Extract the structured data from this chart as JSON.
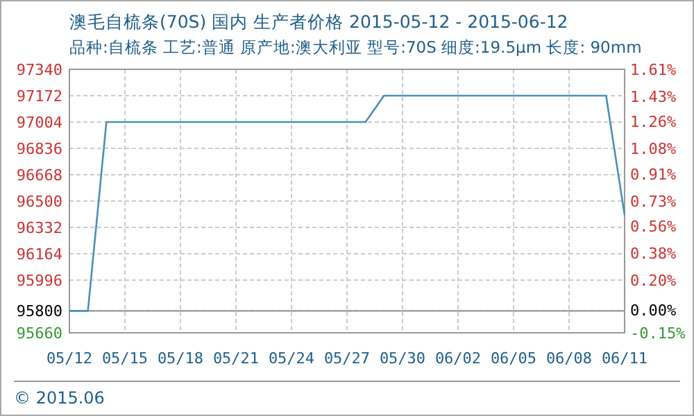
{
  "chart_data": {
    "type": "line",
    "title": "澳毛自梳条(70S) 国内 生产者价格 2015-05-12 - 2015-06-12",
    "subtitle": "品种:自梳条 工艺:普通 原产地:澳大利亚 型号:70S 细度:19.5μm 长度: 90mm",
    "x": [
      "2015-05-12",
      "2015-05-13",
      "2015-05-14",
      "2015-05-28",
      "2015-05-29",
      "2015-06-10",
      "2015-06-11"
    ],
    "series": [
      {
        "color": "#4a8fb8",
        "values": [
          95800,
          95800,
          97004,
          97004,
          97172,
          97172,
          96410
        ]
      }
    ],
    "xlim": [
      "2015-05-12",
      "2015-06-11"
    ],
    "xticks": [
      {
        "value": "2015-05-12",
        "label": "05/12"
      },
      {
        "value": "2015-05-15",
        "label": "05/15"
      },
      {
        "value": "2015-05-18",
        "label": "05/18"
      },
      {
        "value": "2015-05-21",
        "label": "05/21"
      },
      {
        "value": "2015-05-24",
        "label": "05/24"
      },
      {
        "value": "2015-05-27",
        "label": "05/27"
      },
      {
        "value": "2015-05-30",
        "label": "05/30"
      },
      {
        "value": "2015-06-02",
        "label": "06/02"
      },
      {
        "value": "2015-06-05",
        "label": "06/05"
      },
      {
        "value": "2015-06-08",
        "label": "06/08"
      },
      {
        "value": "2015-06-11",
        "label": "06/11"
      }
    ],
    "ylim": [
      95660,
      97340
    ],
    "yticks": [
      95660,
      95800,
      95996,
      96164,
      96332,
      96500,
      96668,
      96836,
      97004,
      97172,
      97340
    ],
    "y2lim": [
      -0.15,
      1.61
    ],
    "y2ticks": [
      {
        "value": -0.15,
        "label": "-0.15%"
      },
      {
        "value": 0,
        "label": "0.00%"
      },
      {
        "value": 0.2,
        "label": "0.20%"
      },
      {
        "value": 0.38,
        "label": "0.38%"
      },
      {
        "value": 0.56,
        "label": "0.56%"
      },
      {
        "value": 0.73,
        "label": "0.73%"
      },
      {
        "value": 0.91,
        "label": "0.91%"
      },
      {
        "value": 1.08,
        "label": "1.08%"
      },
      {
        "value": 1.26,
        "label": "1.26%"
      },
      {
        "value": 1.43,
        "label": "1.43%"
      },
      {
        "value": 1.61,
        "label": "1.61%"
      }
    ],
    "ref_lines": [
      {
        "axis": "y",
        "value": 95800,
        "color": "#999999"
      }
    ],
    "grid": true,
    "line_style": "solid",
    "marker": "none",
    "annotations": [
      "© 2015.06"
    ]
  }
}
